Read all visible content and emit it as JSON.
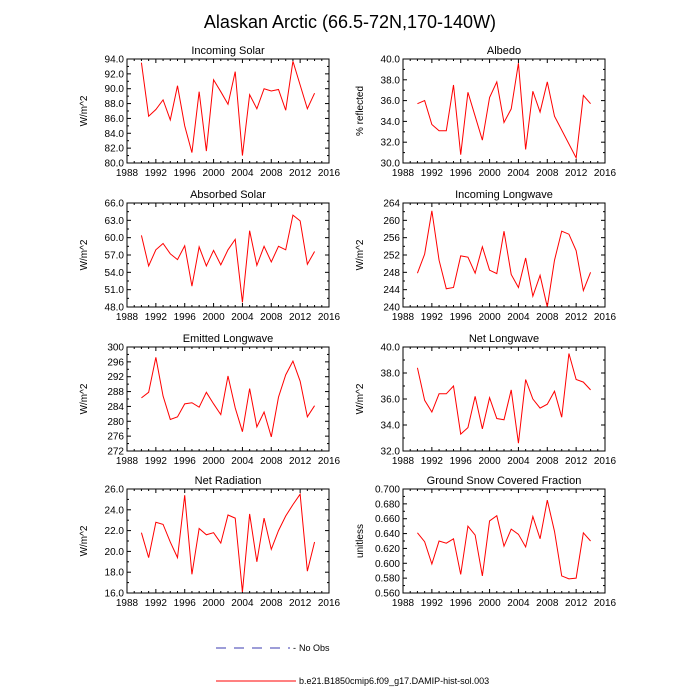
{
  "figure": {
    "title": "Alaskan Arctic (66.5-72N,170-140W)",
    "legend": [
      {
        "label": "No Obs",
        "color": "#3b3bb0",
        "style": "dashed"
      },
      {
        "label": "b.e21.B1850cmip6.f09_g17.DAMIP-hist-sol.003",
        "color": "#ff0000",
        "style": "solid"
      }
    ]
  },
  "chart_data": [
    {
      "type": "line",
      "title": "Incoming Solar",
      "ylabel": "W/m^2",
      "xlim": [
        1988,
        2016
      ],
      "ylim": [
        80,
        94
      ],
      "yticks": [
        "80.0",
        "82.0",
        "84.0",
        "86.0",
        "88.0",
        "90.0",
        "92.0",
        "94.0"
      ],
      "xticks": [
        "1988",
        "1992",
        "1996",
        "2000",
        "2004",
        "2008",
        "2012",
        "2016"
      ],
      "x": [
        1990,
        1991,
        1992,
        1993,
        1994,
        1995,
        1996,
        1997,
        1998,
        1999,
        2000,
        2001,
        2002,
        2003,
        2004,
        2005,
        2006,
        2007,
        2008,
        2009,
        2010,
        2011,
        2012,
        2013,
        2014
      ],
      "series": [
        {
          "color": "#ff0000",
          "values": [
            93.5,
            86.3,
            87.2,
            88.5,
            85.8,
            90.4,
            85.0,
            81.4,
            89.6,
            81.6,
            91.2,
            89.6,
            87.9,
            92.3,
            81.0,
            89.2,
            87.3,
            90.0,
            89.7,
            89.9,
            87.1,
            93.7,
            90.5,
            87.3,
            89.4
          ]
        }
      ]
    },
    {
      "type": "line",
      "title": "Albedo",
      "ylabel": "% reflected",
      "xlim": [
        1988,
        2016
      ],
      "ylim": [
        30,
        40
      ],
      "yticks": [
        "30.0",
        "32.0",
        "34.0",
        "36.0",
        "38.0",
        "40.0"
      ],
      "xticks": [
        "1988",
        "1992",
        "1996",
        "2000",
        "2004",
        "2008",
        "2012",
        "2016"
      ],
      "x": [
        1990,
        1991,
        1992,
        1993,
        1994,
        1995,
        1996,
        1997,
        1998,
        1999,
        2000,
        2001,
        2002,
        2003,
        2004,
        2005,
        2006,
        2007,
        2008,
        2009,
        2012,
        2013,
        2014
      ],
      "series": [
        {
          "color": "#ff0000",
          "values": [
            35.7,
            36.0,
            33.7,
            33.1,
            33.1,
            37.5,
            30.8,
            36.8,
            34.5,
            32.2,
            36.3,
            37.8,
            33.9,
            35.2,
            39.6,
            31.3,
            36.9,
            34.9,
            37.8,
            34.5,
            30.5,
            36.5,
            35.7
          ]
        }
      ]
    },
    {
      "type": "line",
      "title": "Absorbed Solar",
      "ylabel": "W/m^2",
      "xlim": [
        1988,
        2016
      ],
      "ylim": [
        48,
        66
      ],
      "yticks": [
        "48.0",
        "51.0",
        "54.0",
        "57.0",
        "60.0",
        "63.0",
        "66.0"
      ],
      "xticks": [
        "1988",
        "1992",
        "1996",
        "2000",
        "2004",
        "2008",
        "2012",
        "2016"
      ],
      "x": [
        1990,
        1991,
        1992,
        1993,
        1994,
        1995,
        1996,
        1997,
        1998,
        1999,
        2000,
        2001,
        2002,
        2003,
        2004,
        2005,
        2006,
        2007,
        2008,
        2009,
        2010,
        2011,
        2012,
        2013,
        2014
      ],
      "series": [
        {
          "color": "#ff0000",
          "values": [
            60.4,
            55.1,
            57.9,
            59.0,
            57.2,
            56.2,
            58.6,
            51.6,
            58.4,
            55.1,
            57.8,
            55.3,
            57.9,
            59.7,
            48.8,
            61.2,
            55.2,
            58.5,
            55.8,
            58.5,
            57.9,
            63.9,
            62.9,
            55.4,
            57.6
          ]
        }
      ]
    },
    {
      "type": "line",
      "title": "Incoming Longwave",
      "ylabel": "W/m^2",
      "xlim": [
        1988,
        2016
      ],
      "ylim": [
        240,
        264
      ],
      "yticks": [
        "240",
        "244",
        "248",
        "252",
        "256",
        "260",
        "264"
      ],
      "xticks": [
        "1988",
        "1992",
        "1996",
        "2000",
        "2004",
        "2008",
        "2012",
        "2016"
      ],
      "x": [
        1990,
        1991,
        1992,
        1993,
        1994,
        1995,
        1996,
        1997,
        1998,
        1999,
        2000,
        2001,
        2002,
        2003,
        2004,
        2005,
        2006,
        2007,
        2008,
        2009,
        2010,
        2011,
        2012,
        2013,
        2014
      ],
      "series": [
        {
          "color": "#ff0000",
          "values": [
            247.8,
            252.2,
            262.2,
            250.8,
            244.2,
            244.5,
            251.8,
            251.5,
            247.8,
            253.9,
            248.5,
            247.7,
            257.5,
            247.5,
            244.5,
            251.3,
            242.5,
            247.3,
            240.0,
            250.8,
            257.5,
            256.8,
            253.0,
            243.8,
            248.0
          ]
        }
      ]
    },
    {
      "type": "line",
      "title": "Emitted Longwave",
      "ylabel": "W/m^2",
      "xlim": [
        1988,
        2016
      ],
      "ylim": [
        272,
        300
      ],
      "yticks": [
        "272",
        "276",
        "280",
        "284",
        "288",
        "292",
        "296",
        "300"
      ],
      "xticks": [
        "1988",
        "1992",
        "1996",
        "2000",
        "2004",
        "2008",
        "2012",
        "2016"
      ],
      "x": [
        1990,
        1991,
        1992,
        1993,
        1994,
        1995,
        1996,
        1997,
        1998,
        1999,
        2000,
        2001,
        2002,
        2003,
        2004,
        2005,
        2006,
        2007,
        2008,
        2009,
        2010,
        2011,
        2012,
        2013,
        2014
      ],
      "series": [
        {
          "color": "#ff0000",
          "values": [
            286.3,
            287.8,
            297.2,
            286.8,
            280.5,
            281.2,
            284.7,
            285.0,
            283.8,
            287.8,
            284.7,
            281.8,
            292.2,
            283.6,
            277.2,
            288.8,
            278.5,
            282.5,
            275.8,
            286.5,
            292.5,
            296.2,
            290.8,
            281.2,
            284.2
          ]
        }
      ]
    },
    {
      "type": "line",
      "title": "Net Longwave",
      "ylabel": "W/m^2",
      "xlim": [
        1988,
        2016
      ],
      "ylim": [
        32,
        40
      ],
      "yticks": [
        "32.0",
        "34.0",
        "36.0",
        "38.0",
        "40.0"
      ],
      "xticks": [
        "1988",
        "1992",
        "1996",
        "2000",
        "2004",
        "2008",
        "2012",
        "2016"
      ],
      "x": [
        1990,
        1991,
        1992,
        1993,
        1994,
        1995,
        1996,
        1997,
        1998,
        1999,
        2000,
        2001,
        2002,
        2003,
        2004,
        2005,
        2006,
        2007,
        2008,
        2009,
        2010,
        2011,
        2012,
        2013,
        2014
      ],
      "series": [
        {
          "color": "#ff0000",
          "values": [
            38.4,
            35.9,
            35.0,
            36.4,
            36.4,
            37.0,
            33.3,
            33.8,
            36.2,
            33.7,
            36.1,
            34.5,
            34.4,
            36.7,
            32.6,
            37.5,
            36.0,
            35.3,
            35.6,
            36.6,
            34.6,
            39.5,
            37.5,
            37.3,
            36.7
          ]
        }
      ]
    },
    {
      "type": "line",
      "title": "Net Radiation",
      "ylabel": "W/m^2",
      "xlim": [
        1988,
        2016
      ],
      "ylim": [
        16,
        26
      ],
      "yticks": [
        "16.0",
        "18.0",
        "20.0",
        "22.0",
        "24.0",
        "26.0"
      ],
      "xticks": [
        "1988",
        "1992",
        "1996",
        "2000",
        "2004",
        "2008",
        "2012",
        "2016"
      ],
      "x": [
        1990,
        1991,
        1992,
        1993,
        1994,
        1995,
        1996,
        1997,
        1998,
        1999,
        2000,
        2001,
        2002,
        2003,
        2004,
        2005,
        2006,
        2007,
        2008,
        2009,
        2010,
        2011,
        2012,
        2013,
        2014
      ],
      "series": [
        {
          "color": "#ff0000",
          "values": [
            21.8,
            19.4,
            22.8,
            22.6,
            20.9,
            19.4,
            25.4,
            17.8,
            22.2,
            21.6,
            21.8,
            20.8,
            23.5,
            23.2,
            16.1,
            23.6,
            19.0,
            23.2,
            20.2,
            22.0,
            23.4,
            24.5,
            25.5,
            18.1,
            20.9
          ]
        }
      ]
    },
    {
      "type": "line",
      "title": "Ground Snow Covered Fraction",
      "ylabel": "unitless",
      "xlim": [
        1988,
        2016
      ],
      "ylim": [
        0.56,
        0.7
      ],
      "yticks": [
        "0.560",
        "0.580",
        "0.600",
        "0.620",
        "0.640",
        "0.660",
        "0.680",
        "0.700"
      ],
      "xticks": [
        "1988",
        "1992",
        "1996",
        "2000",
        "2004",
        "2008",
        "2012",
        "2016"
      ],
      "x": [
        1990,
        1991,
        1992,
        1993,
        1994,
        1995,
        1996,
        1997,
        1998,
        1999,
        2000,
        2001,
        2002,
        2003,
        2004,
        2005,
        2006,
        2007,
        2008,
        2009,
        2010,
        2011,
        2012,
        2013,
        2014
      ],
      "series": [
        {
          "color": "#ff0000",
          "values": [
            0.641,
            0.629,
            0.599,
            0.63,
            0.627,
            0.633,
            0.585,
            0.65,
            0.638,
            0.583,
            0.657,
            0.664,
            0.623,
            0.646,
            0.639,
            0.622,
            0.663,
            0.633,
            0.685,
            0.643,
            0.583,
            0.579,
            0.58,
            0.641,
            0.63
          ]
        }
      ]
    }
  ]
}
